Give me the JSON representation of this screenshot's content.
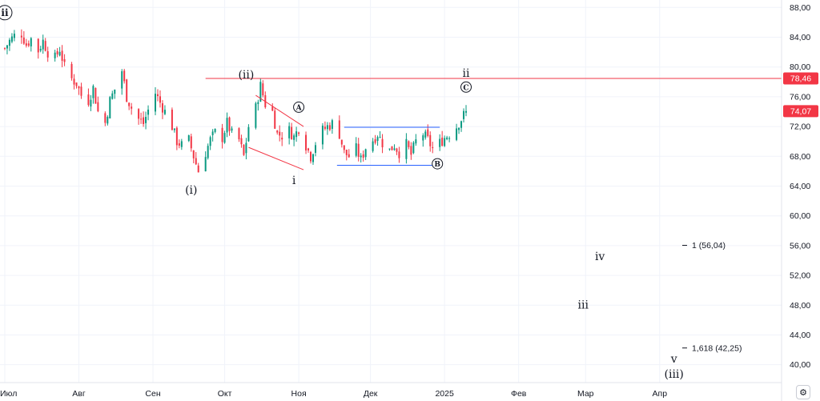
{
  "chart_data": {
    "type": "candlestick",
    "y_axis": {
      "range": [
        37.6,
        89.0
      ],
      "ticks": [
        "88,00",
        "84,00",
        "80,00",
        "76,00",
        "72,00",
        "68,00",
        "64,00",
        "60,00",
        "56,00",
        "52,00",
        "48,00",
        "44,00",
        "40,00"
      ],
      "tick_values": [
        88,
        84,
        80,
        76,
        72,
        68,
        64,
        60,
        56,
        52,
        48,
        44,
        40
      ],
      "position": "right"
    },
    "x_axis": {
      "ticks": [
        "Июл",
        "Авг",
        "Сен",
        "Окт",
        "Ноя",
        "Дек",
        "2025",
        "Фев",
        "Мар",
        "Апр"
      ],
      "tick_dates": [
        "2024-07-01",
        "2024-08-01",
        "2024-09-01",
        "2024-10-01",
        "2024-11-01",
        "2024-12-01",
        "2025-01-01",
        "2025-02-01",
        "2025-03-01",
        "2025-04-01"
      ],
      "range": [
        "2024-06-29",
        "2025-05-22"
      ]
    },
    "price_path": [
      [
        "2024-07-01",
        82.5
      ],
      [
        "2024-07-03",
        83.5
      ],
      [
        "2024-07-05",
        84.2
      ],
      [
        "2024-07-08",
        84.5
      ],
      [
        "2024-07-10",
        83.0
      ],
      [
        "2024-07-12",
        83.8
      ],
      [
        "2024-07-15",
        82.2
      ],
      [
        "2024-07-17",
        83.5
      ],
      [
        "2024-07-19",
        82.0
      ],
      [
        "2024-07-22",
        81.2
      ],
      [
        "2024-07-24",
        82.4
      ],
      [
        "2024-07-26",
        80.0
      ],
      [
        "2024-07-29",
        78.4
      ],
      [
        "2024-07-31",
        77.8
      ],
      [
        "2024-08-02",
        76.2
      ],
      [
        "2024-08-05",
        75.5
      ],
      [
        "2024-08-07",
        77.2
      ],
      [
        "2024-08-09",
        74.0
      ],
      [
        "2024-08-12",
        72.5
      ],
      [
        "2024-08-14",
        75.5
      ],
      [
        "2024-08-16",
        77.0
      ],
      [
        "2024-08-19",
        79.5
      ],
      [
        "2024-08-21",
        76.0
      ],
      [
        "2024-08-23",
        74.5
      ],
      [
        "2024-08-26",
        73.0
      ],
      [
        "2024-08-28",
        72.4
      ],
      [
        "2024-08-30",
        74.2
      ],
      [
        "2024-09-02",
        76.5
      ],
      [
        "2024-09-04",
        75.2
      ],
      [
        "2024-09-06",
        74.0
      ],
      [
        "2024-09-09",
        72.0
      ],
      [
        "2024-09-11",
        70.0
      ],
      [
        "2024-09-13",
        69.5
      ],
      [
        "2024-09-16",
        70.2
      ],
      [
        "2024-09-18",
        68.0
      ],
      [
        "2024-09-20",
        66.0
      ],
      [
        "2024-09-23",
        68.5
      ],
      [
        "2024-09-25",
        70.2
      ],
      [
        "2024-09-27",
        71.2
      ],
      [
        "2024-09-30",
        70.5
      ],
      [
        "2024-10-02",
        72.5
      ],
      [
        "2024-10-04",
        71.0
      ],
      [
        "2024-10-07",
        70.2
      ],
      [
        "2024-10-09",
        68.0
      ],
      [
        "2024-10-11",
        72.0
      ],
      [
        "2024-10-14",
        74.5
      ],
      [
        "2024-10-16",
        77.5
      ],
      [
        "2024-10-18",
        75.0
      ],
      [
        "2024-10-21",
        74.0
      ],
      [
        "2024-10-23",
        71.0
      ],
      [
        "2024-10-25",
        70.8
      ],
      [
        "2024-10-28",
        71.5
      ],
      [
        "2024-10-30",
        70.6
      ],
      [
        "2024-11-01",
        71.8
      ],
      [
        "2024-11-04",
        69.5
      ],
      [
        "2024-11-06",
        68.0
      ],
      [
        "2024-11-08",
        69.8
      ],
      [
        "2024-11-11",
        71.5
      ],
      [
        "2024-11-13",
        72.0
      ],
      [
        "2024-11-15",
        72.4
      ],
      [
        "2024-11-18",
        71.0
      ],
      [
        "2024-11-20",
        68.5
      ],
      [
        "2024-11-22",
        68.0
      ],
      [
        "2024-11-25",
        69.0
      ],
      [
        "2024-11-27",
        67.5
      ],
      [
        "2024-11-29",
        69.2
      ],
      [
        "2024-12-02",
        70.2
      ],
      [
        "2024-12-04",
        71.0
      ],
      [
        "2024-12-06",
        69.8
      ],
      [
        "2024-12-09",
        68.8
      ],
      [
        "2024-12-11",
        69.5
      ],
      [
        "2024-12-13",
        68.5
      ],
      [
        "2024-12-16",
        69.6
      ],
      [
        "2024-12-18",
        68.2
      ],
      [
        "2024-12-20",
        70.0
      ],
      [
        "2024-12-23",
        71.0
      ],
      [
        "2024-12-25",
        70.2
      ],
      [
        "2024-12-27",
        69.0
      ],
      [
        "2024-12-30",
        69.8
      ],
      [
        "2025-01-01",
        70.5
      ],
      [
        "2025-01-03",
        71.0
      ],
      [
        "2025-01-06",
        72.0
      ],
      [
        "2025-01-08",
        73.0
      ],
      [
        "2025-01-10",
        74.07
      ]
    ],
    "levels": {
      "resistance": 78.46,
      "current": 74.07
    },
    "price_labels": [
      {
        "text": "78,46",
        "value": 78.46
      },
      {
        "text": "74,07",
        "value": 74.07
      }
    ],
    "wave_labels": [
      {
        "text": "ii",
        "circled": true,
        "date": "2024-07-01",
        "value": 87.3
      },
      {
        "text": "(i)",
        "circled": false,
        "date": "2024-09-17",
        "value": 63.5
      },
      {
        "text": "(ii)",
        "circled": false,
        "date": "2024-10-10",
        "value": 79.0
      },
      {
        "text": "A",
        "circled": true,
        "date": "2024-11-01",
        "value": 74.6
      },
      {
        "text": "i",
        "circled": false,
        "date": "2024-10-30",
        "value": 64.8
      },
      {
        "text": "B",
        "circled": true,
        "date": "2024-12-29",
        "value": 67.0
      },
      {
        "text": "ii",
        "circled": false,
        "date": "2025-01-10",
        "value": 79.2
      },
      {
        "text": "C",
        "circled": true,
        "date": "2025-01-10",
        "value": 77.3
      },
      {
        "text": "iv",
        "circled": false,
        "date": "2025-03-07",
        "value": 54.6
      },
      {
        "text": "iii",
        "circled": false,
        "date": "2025-02-28",
        "value": 48.1
      },
      {
        "text": "v",
        "circled": false,
        "date": "2025-04-07",
        "value": 40.8
      },
      {
        "text": "(iii)",
        "circled": false,
        "date": "2025-04-07",
        "value": 38.8
      }
    ],
    "fib_levels": [
      {
        "text": "1 (56,04)",
        "value": 56.04
      },
      {
        "text": "1,618 (42,25)",
        "value": 42.25
      }
    ],
    "trendlines": [
      {
        "color": "#f23645",
        "from": [
          "2024-10-14",
          76.2
        ],
        "to": [
          "2024-11-03",
          72.0
        ]
      },
      {
        "color": "#f23645",
        "from": [
          "2024-10-11",
          69.2
        ],
        "to": [
          "2024-11-03",
          66.2
        ]
      }
    ],
    "range_box": {
      "color": "#2962ff",
      "top": {
        "from": [
          "2024-11-20",
          71.9
        ],
        "to": [
          "2024-12-30",
          71.9
        ]
      },
      "bottom": {
        "from": [
          "2024-11-17",
          66.8
        ],
        "to": [
          "2024-12-27",
          66.8
        ]
      }
    },
    "colors": {
      "up": "#089981",
      "down": "#f23645",
      "resistance": "#f23645",
      "current": "#f23645",
      "range": "#2962ff",
      "grid": "#f0f3fa"
    },
    "grid": true
  },
  "settings_icon": "gear-icon"
}
